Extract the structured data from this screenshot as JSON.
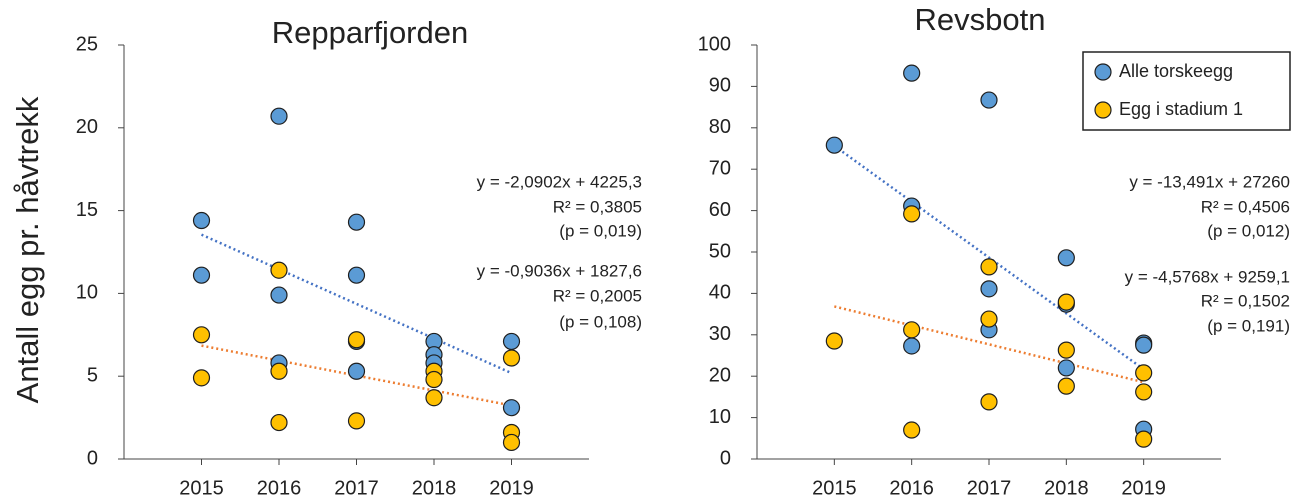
{
  "chart_data": [
    {
      "type": "scatter",
      "title": "Repparfjorden",
      "y_label": "Antall egg pr. håvtrekk",
      "xlim": [
        2014,
        2020
      ],
      "xticks": [
        2015,
        2016,
        2017,
        2018,
        2019
      ],
      "ylim": [
        0,
        25
      ],
      "yticks": [
        0,
        5,
        10,
        15,
        20,
        25
      ],
      "series": [
        {
          "color": "#5b9bd5",
          "x": [
            2015,
            2015,
            2016,
            2016,
            2016,
            2017,
            2017,
            2017,
            2017,
            2018,
            2018,
            2018,
            2019,
            2019
          ],
          "values": [
            14.4,
            11.1,
            20.7,
            9.9,
            5.8,
            14.3,
            11.1,
            7.1,
            5.3,
            7.1,
            6.3,
            5.8,
            7.1,
            3.1
          ],
          "trendline": {
            "slope": -2.0902,
            "intercept": 4225.3,
            "color": "#4472c4",
            "label_color": "#1a9bd7",
            "equation": "y = -2,0902x + 4225,3",
            "r2": "R² = 0,3805",
            "p": "(p = 0,019)"
          }
        },
        {
          "color": "#ffc000",
          "x": [
            2015,
            2015,
            2016,
            2016,
            2016,
            2017,
            2017,
            2018,
            2018,
            2018,
            2019,
            2019,
            2019
          ],
          "values": [
            7.5,
            4.9,
            11.4,
            5.3,
            2.2,
            7.2,
            2.3,
            5.3,
            4.8,
            3.7,
            6.1,
            1.6,
            1.0
          ],
          "trendline": {
            "slope": -0.9036,
            "intercept": 1827.6,
            "color": "#ed7d31",
            "label_color": "#e07b39",
            "equation": "y = -0,9036x + 1827,6",
            "r2": "R² = 0,2005",
            "p": "(p = 0,108)"
          }
        }
      ]
    },
    {
      "type": "scatter",
      "title": "Revsbotn",
      "legend": "upper right",
      "xlim": [
        2014,
        2020
      ],
      "xticks": [
        2015,
        2016,
        2017,
        2018,
        2019
      ],
      "ylim": [
        0,
        100
      ],
      "yticks": [
        0,
        10,
        20,
        30,
        40,
        50,
        60,
        70,
        80,
        90,
        100
      ],
      "series": [
        {
          "name": "Alle torskeegg",
          "color": "#5b9bd5",
          "x": [
            2015,
            2016,
            2016,
            2016,
            2017,
            2017,
            2017,
            2018,
            2018,
            2018,
            2019,
            2019,
            2019
          ],
          "values": [
            75.8,
            93.2,
            61.1,
            27.3,
            86.7,
            41.1,
            31.2,
            48.6,
            37.4,
            22,
            28,
            27.5,
            7.2
          ],
          "trendline": {
            "slope": -13.491,
            "intercept": 27260,
            "color": "#4472c4",
            "label_color": "#1a9bd7",
            "equation": "y = -13,491x + 27260",
            "r2": "R² = 0,4506",
            "p": "(p = 0,012)"
          }
        },
        {
          "name": "Egg i stadium 1",
          "color": "#ffc000",
          "x": [
            2015,
            2016,
            2016,
            2016,
            2017,
            2017,
            2017,
            2018,
            2018,
            2018,
            2019,
            2019,
            2019
          ],
          "values": [
            28.5,
            59.2,
            31.2,
            7,
            46.4,
            33.8,
            13.8,
            37.9,
            26.3,
            17.6,
            20.8,
            16.2,
            4.8
          ],
          "trendline": {
            "slope": -4.5768,
            "intercept": 9259.1,
            "color": "#ed7d31",
            "label_color": "#e07b39",
            "equation": "y = -4,5768x + 9259,1",
            "r2": "R² = 0,1502",
            "p": "(p = 0,191)"
          }
        }
      ]
    }
  ]
}
